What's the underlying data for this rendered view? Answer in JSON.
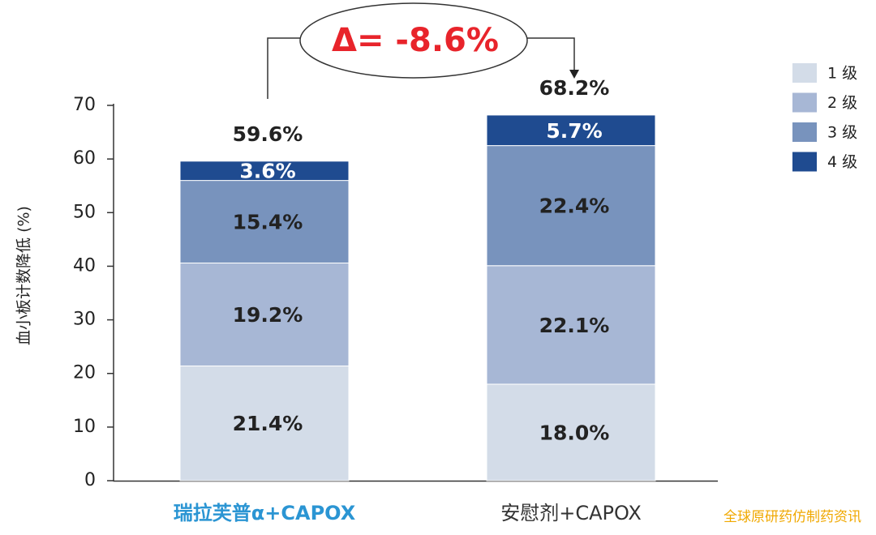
{
  "chart_data": {
    "type": "stacked_bar",
    "y_label": "血小板计数降低 (%)",
    "annotation": "Δ= -8.6%",
    "watermark": "全球原研药仿制药资讯",
    "categories": [
      "瑞拉芙普α+CAPOX",
      "安慰剂+CAPOX"
    ],
    "category_colors": [
      "#2b95d3",
      "#333333"
    ],
    "series": [
      {
        "name": "1 级",
        "color": "#d3dce8",
        "label_color": "#222222",
        "values": [
          21.4,
          18.0
        ],
        "value_labels": [
          "21.4%",
          "18.0%"
        ]
      },
      {
        "name": "2 级",
        "color": "#a7b7d5",
        "label_color": "#222222",
        "values": [
          19.2,
          22.1
        ],
        "value_labels": [
          "19.2%",
          "22.1%"
        ]
      },
      {
        "name": "3 级",
        "color": "#7893bd",
        "label_color": "#222222",
        "values": [
          15.4,
          22.4
        ],
        "value_labels": [
          "15.4%",
          "22.4%"
        ]
      },
      {
        "name": "4 级",
        "color": "#1f4b90",
        "label_color": "#ffffff",
        "values": [
          3.6,
          5.7
        ],
        "value_labels": [
          "3.6%",
          "5.7%"
        ]
      }
    ],
    "totals": [
      59.6,
      68.2
    ],
    "total_labels": [
      "59.6%",
      "68.2%"
    ],
    "ylim": [
      0,
      70
    ],
    "yticks": [
      0,
      10,
      20,
      30,
      40,
      50,
      60,
      70
    ],
    "legend": "right"
  }
}
